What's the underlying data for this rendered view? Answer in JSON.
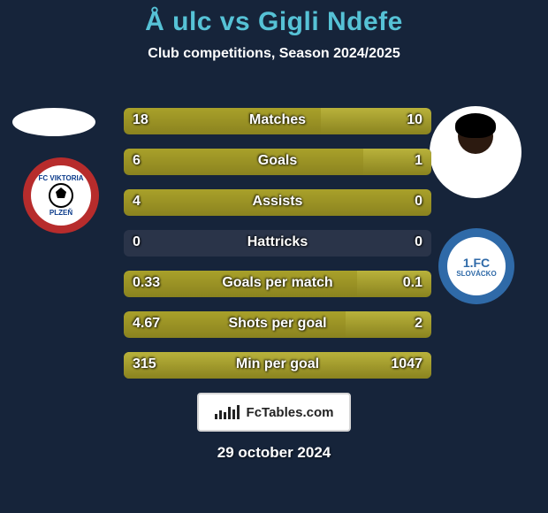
{
  "title": {
    "text": "Å ulc vs Gigli Ndefe",
    "color": "#56c2d6",
    "fontsize": 30
  },
  "subtitle": {
    "text": "Club competitions, Season 2024/2025",
    "fontsize": 16,
    "color": "#ffffff"
  },
  "colors": {
    "bg": "#16243a",
    "bar_left": "#a9a12a",
    "bar_right": "#b9b23b",
    "bar_shadow": "#8a831f",
    "bar_empty": "#2a3449",
    "value_fontsize": 16,
    "label_fontsize": 16
  },
  "rows": [
    {
      "label": "Matches",
      "left": "18",
      "right": "10",
      "left_pct": 64,
      "right_pct": 36
    },
    {
      "label": "Goals",
      "left": "6",
      "right": "1",
      "left_pct": 78,
      "right_pct": 22
    },
    {
      "label": "Assists",
      "left": "4",
      "right": "0",
      "left_pct": 100,
      "right_pct": 0
    },
    {
      "label": "Hattricks",
      "left": "0",
      "right": "0",
      "left_pct": 0,
      "right_pct": 0
    },
    {
      "label": "Goals per match",
      "left": "0.33",
      "right": "0.1",
      "left_pct": 76,
      "right_pct": 24
    },
    {
      "label": "Shots per goal",
      "left": "4.67",
      "right": "2",
      "left_pct": 92,
      "right_pct": 28
    },
    {
      "label": "Min per goal",
      "left": "315",
      "right": "1047",
      "left_pct": 100,
      "right_pct": 100
    }
  ],
  "avatars": {
    "left_ellipse_color": "#ffffff",
    "right_bg": "#ffffff"
  },
  "badges": {
    "left": {
      "ring_color": "#b72c2c",
      "inner_color": "#ffffff",
      "text_color": "#0a3a8a",
      "line1": "FC VIKTORIA",
      "line2": "PLZEŇ"
    },
    "right": {
      "ring_color": "#2f6aa8",
      "inner_color": "#ffffff",
      "text_color": "#2f6aa8",
      "line1": "1.FC",
      "line2": "SLOVÁCKO"
    }
  },
  "footer": {
    "logo_text": "FcTables.com",
    "date": "29 october 2024",
    "date_fontsize": 17
  }
}
